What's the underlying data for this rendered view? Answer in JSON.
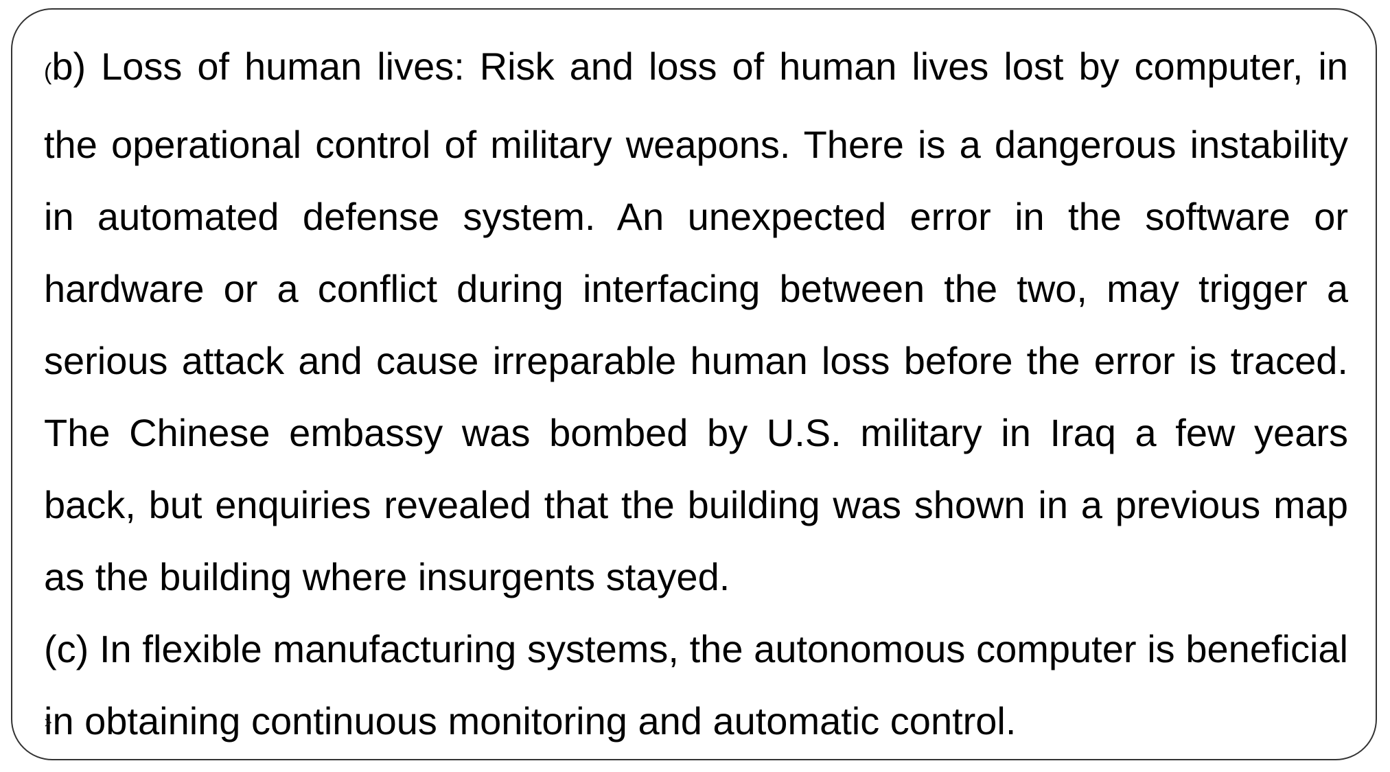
{
  "slide": {
    "paragraph_b": {
      "marker_open": "(",
      "marker_rest": "b)",
      "text": "Loss of human lives: Risk and loss of human lives lost by computer, in the operational  control of military weapons. There is a dangerous instability in automated defense system.  An unexpected error in the software or hardware or a conflict during interfacing between the  two, may trigger a serious attack and cause irreparable human loss before the error is  traced. The Chinese embassy was bombed by U.S. military in Iraq a few years back, but  enquiries revealed that the building was shown in a previous map as the building where insurgents stayed."
    },
    "paragraph_c": {
      "text": "(c) In flexible manufacturing systems, the autonomous computer is beneficial in obtaining  continuous monitoring and automatic control."
    }
  }
}
